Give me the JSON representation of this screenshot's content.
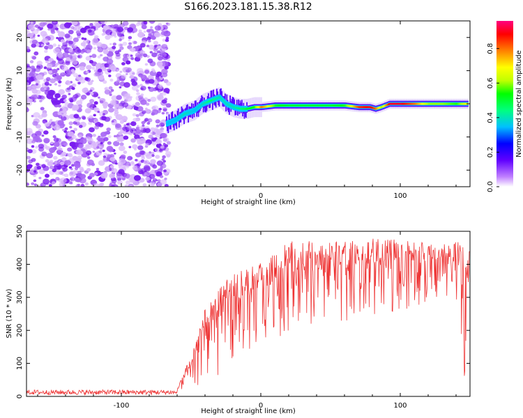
{
  "title": "S166.2023.181.15.38.R12",
  "chart_data": [
    {
      "type": "heatmap",
      "xlabel": "Height of straight line (km)",
      "ylabel": "Frequency (Hz)",
      "xlim": [
        -168,
        150
      ],
      "ylim": [
        -25,
        25
      ],
      "xticks": [
        -100,
        0,
        100
      ],
      "yticks": [
        -20,
        -10,
        0,
        10,
        20
      ],
      "colorbar": {
        "label": "Normalized spectral amplitude",
        "range": [
          0,
          0.96
        ],
        "ticks": [
          0.0,
          0.2,
          0.4,
          0.6,
          0.8
        ],
        "colors": [
          "#ffffff",
          "#c080ff",
          "#6000ff",
          "#0000ff",
          "#00c0ff",
          "#00ff80",
          "#00ff00",
          "#c0ff00",
          "#ffff00",
          "#ff8000",
          "#ff0000",
          "#ff0080"
        ]
      },
      "noise_region_x": [
        -168,
        -66
      ],
      "ridge": {
        "x": [
          -68,
          -62,
          -55,
          -48,
          -42,
          -36,
          -30,
          -25,
          -20,
          -15,
          -10,
          -5,
          0,
          10,
          20,
          30,
          40,
          50,
          60,
          70,
          78,
          82,
          86,
          92,
          100,
          110,
          120,
          130,
          140,
          148
        ],
        "freq": [
          -6,
          -5,
          -3,
          -2,
          0,
          1,
          2,
          0,
          -1,
          -1.5,
          -1.5,
          -1,
          -1,
          -0.5,
          -0.5,
          -0.5,
          -0.5,
          -0.5,
          -0.5,
          -1,
          -1,
          -1.5,
          -1,
          0,
          0,
          0,
          0,
          0,
          0,
          0
        ],
        "amplitude": [
          0.35,
          0.35,
          0.4,
          0.35,
          0.4,
          0.45,
          0.4,
          0.4,
          0.4,
          0.45,
          0.5,
          0.55,
          0.8,
          0.55,
          0.5,
          0.5,
          0.5,
          0.5,
          0.55,
          0.85,
          0.9,
          0.8,
          0.6,
          0.9,
          0.9,
          0.8,
          0.6,
          0.6,
          0.55,
          0.7
        ]
      }
    },
    {
      "type": "line",
      "xlabel": "Height of straight line (km)",
      "ylabel": "SNR (10 * v/v)",
      "xlim": [
        -168,
        150
      ],
      "ylim": [
        0,
        500
      ],
      "xticks": [
        -100,
        0,
        100
      ],
      "yticks": [
        0,
        100,
        200,
        300,
        400,
        500
      ],
      "series": [
        {
          "color": "#ee3333",
          "envelope_x": [
            -168,
            -60,
            -55,
            -50,
            -45,
            -40,
            -35,
            -30,
            -25,
            -20,
            -15,
            -10,
            -5,
            0,
            5,
            10,
            15,
            20,
            30,
            50,
            80,
            110,
            130,
            140,
            143,
            146,
            150
          ],
          "envelope_upper": [
            20,
            20,
            80,
            120,
            200,
            280,
            320,
            330,
            360,
            380,
            380,
            390,
            400,
            420,
            420,
            430,
            450,
            470,
            470,
            470,
            480,
            470,
            460,
            470,
            470,
            470,
            460
          ],
          "envelope_lower": [
            5,
            5,
            10,
            15,
            30,
            40,
            60,
            60,
            80,
            100,
            110,
            120,
            150,
            160,
            170,
            180,
            180,
            200,
            200,
            220,
            240,
            270,
            300,
            300,
            200,
            40,
            400
          ]
        }
      ]
    }
  ]
}
